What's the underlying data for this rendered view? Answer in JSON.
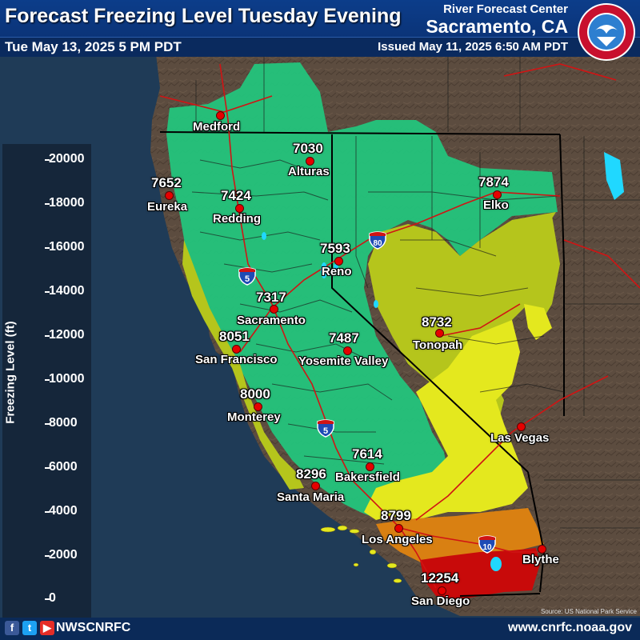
{
  "header": {
    "title": "Forecast Freezing Level Tuesday Evening",
    "valid_time": "Tue May 13, 2025 5 PM PDT",
    "office_line1": "River Forecast Center",
    "office_line2": "Sacramento, CA",
    "issued": "Issued May 11, 2025 6:50 AM PDT"
  },
  "legend": {
    "title": "Freezing Level (ft)",
    "ticks": [
      "20000",
      "18000",
      "16000",
      "14000",
      "12000",
      "10000",
      "8000",
      "6000",
      "4000",
      "2000",
      "0"
    ]
  },
  "cities": [
    {
      "name": "Medford",
      "value": ""
    },
    {
      "name": "Alturas",
      "value": "7030"
    },
    {
      "name": "Eureka",
      "value": "7652"
    },
    {
      "name": "Redding",
      "value": "7424"
    },
    {
      "name": "Elko",
      "value": "7874"
    },
    {
      "name": "Reno",
      "value": "7593"
    },
    {
      "name": "Sacramento",
      "value": "7317"
    },
    {
      "name": "Tonopah",
      "value": "8732"
    },
    {
      "name": "San Francisco",
      "value": "8051"
    },
    {
      "name": "Yosemite Valley",
      "value": "7487"
    },
    {
      "name": "Monterey",
      "value": "8000"
    },
    {
      "name": "Las Vegas",
      "value": ""
    },
    {
      "name": "Bakersfield",
      "value": "7614"
    },
    {
      "name": "Santa Maria",
      "value": "8296"
    },
    {
      "name": "Los Angeles",
      "value": "8799"
    },
    {
      "name": "Blythe",
      "value": ""
    },
    {
      "name": "San Diego",
      "value": "12254"
    }
  ],
  "highways": {
    "i5_north": "5",
    "i5_south": "5",
    "i80": "80",
    "i10": "10"
  },
  "footer": {
    "social_handle": "NWSCNRFC",
    "website": "www.cnrfc.noaa.gov",
    "source": "Source: US National Park Service",
    "icons": [
      "facebook-icon",
      "twitter-icon",
      "youtube-icon"
    ]
  },
  "colors": {
    "ocean": "#1f3b57",
    "land": "#5b4b3e",
    "green_7000": "#25c77e",
    "olive_8000": "#b3c41c",
    "yellow_9000": "#e6ea1e",
    "orange_11000": "#d97a12",
    "red_12000": "#cc0c0c",
    "city_marker": "#e60000"
  }
}
